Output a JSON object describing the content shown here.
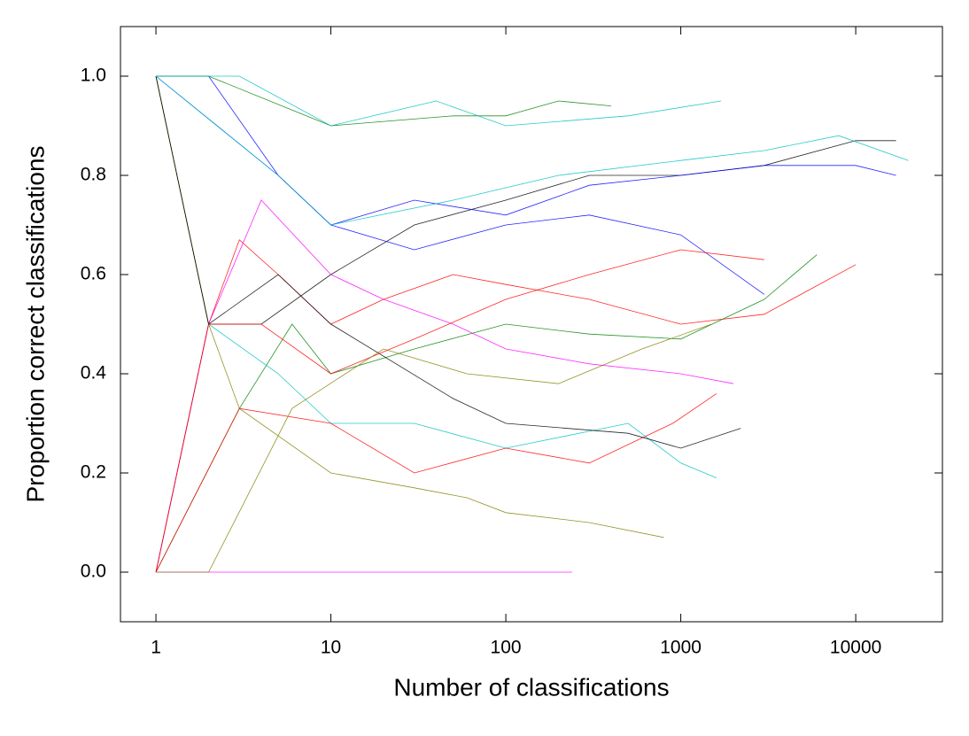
{
  "chart_data": {
    "type": "line",
    "x_label": "Number of classifications",
    "y_label": "Proportion correct classifications",
    "log_x": true,
    "xlim": [
      0.627,
      31300
    ],
    "xticks": [
      1,
      10,
      100,
      1000,
      10000
    ],
    "ylim": [
      -0.1,
      1.1
    ],
    "yticks": [
      {
        "value": 0,
        "label": "0.0"
      },
      {
        "value": 0.2,
        "label": "0.2"
      },
      {
        "value": 0.4,
        "label": "0.4"
      },
      {
        "value": 0.6,
        "label": "0.6"
      },
      {
        "value": 0.8,
        "label": "0.8"
      },
      {
        "value": 1,
        "label": "1.0"
      }
    ],
    "series": [
      {
        "color": "#ff0000",
        "x": [
          1,
          2,
          3,
          5,
          10,
          20,
          50,
          100,
          300,
          1000,
          3000,
          10000
        ],
        "values": [
          1,
          0.5,
          0.67,
          0.6,
          0.5,
          0.55,
          0.6,
          0.58,
          0.55,
          0.5,
          0.52,
          0.62
        ]
      },
      {
        "color": "#000000",
        "x": [
          1,
          2,
          4,
          10,
          30,
          100,
          300,
          1000,
          3000,
          10000,
          17000
        ],
        "values": [
          0,
          0.5,
          0.5,
          0.6,
          0.7,
          0.75,
          0.8,
          0.8,
          0.82,
          0.87,
          0.87
        ]
      },
      {
        "color": "#0000ff",
        "x": [
          1,
          2,
          5,
          10,
          30,
          100,
          300,
          1000,
          3000
        ],
        "values": [
          1,
          1,
          0.8,
          0.7,
          0.65,
          0.7,
          0.72,
          0.68,
          0.56
        ]
      },
      {
        "color": "#008000",
        "x": [
          1,
          3,
          6,
          10,
          30,
          100,
          300,
          1000,
          3000,
          6000
        ],
        "values": [
          0,
          0.33,
          0.5,
          0.4,
          0.45,
          0.5,
          0.48,
          0.47,
          0.55,
          0.64
        ]
      },
      {
        "color": "#00c0c0",
        "x": [
          1,
          2,
          5,
          10,
          30,
          100,
          500,
          1000,
          1600
        ],
        "values": [
          1,
          0.5,
          0.4,
          0.3,
          0.3,
          0.25,
          0.3,
          0.22,
          0.19
        ]
      },
      {
        "color": "#ff00ff",
        "x": [
          1,
          2,
          4,
          10,
          20,
          50,
          100,
          300,
          1000,
          2000
        ],
        "values": [
          0,
          0.5,
          0.75,
          0.6,
          0.55,
          0.5,
          0.45,
          0.42,
          0.4,
          0.38
        ]
      },
      {
        "color": "#808000",
        "x": [
          1,
          2,
          3,
          10,
          30,
          60,
          100,
          300,
          800
        ],
        "values": [
          1,
          0.5,
          0.33,
          0.2,
          0.17,
          0.15,
          0.12,
          0.1,
          0.07
        ]
      },
      {
        "color": "#ff0000",
        "x": [
          1,
          3,
          10,
          30,
          100,
          300,
          900,
          1600
        ],
        "values": [
          0,
          0.33,
          0.3,
          0.2,
          0.25,
          0.22,
          0.3,
          0.36
        ]
      },
      {
        "color": "#000000",
        "x": [
          1,
          2,
          5,
          10,
          50,
          100,
          500,
          1000,
          2200
        ],
        "values": [
          1,
          0.5,
          0.6,
          0.5,
          0.35,
          0.3,
          0.28,
          0.25,
          0.29
        ]
      },
      {
        "color": "#0000ff",
        "x": [
          1,
          5,
          10,
          30,
          100,
          300,
          1000,
          3000,
          10000,
          17000
        ],
        "values": [
          1,
          0.8,
          0.7,
          0.75,
          0.72,
          0.78,
          0.8,
          0.82,
          0.82,
          0.8
        ]
      },
      {
        "color": "#008000",
        "x": [
          1,
          2,
          10,
          50,
          100,
          200,
          400
        ],
        "values": [
          1,
          1,
          0.9,
          0.92,
          0.92,
          0.95,
          0.94
        ]
      },
      {
        "color": "#00c0c0",
        "x": [
          1,
          3,
          10,
          40,
          100,
          500,
          1700
        ],
        "values": [
          1,
          1,
          0.9,
          0.95,
          0.9,
          0.92,
          0.95
        ]
      },
      {
        "color": "#ff00ff",
        "x": [
          1,
          2,
          5,
          10,
          50,
          240
        ],
        "values": [
          0,
          0,
          0,
          0,
          0,
          0
        ]
      },
      {
        "color": "#00c0c0",
        "x": [
          1,
          5,
          10,
          50,
          200,
          1000,
          3000,
          8000,
          20000
        ],
        "values": [
          1,
          0.8,
          0.7,
          0.75,
          0.8,
          0.83,
          0.85,
          0.88,
          0.83
        ]
      },
      {
        "color": "#ff0000",
        "x": [
          1,
          2,
          4,
          10,
          30,
          100,
          300,
          1000,
          3000
        ],
        "values": [
          0,
          0.5,
          0.5,
          0.4,
          0.47,
          0.55,
          0.6,
          0.65,
          0.63
        ]
      },
      {
        "color": "#808000",
        "x": [
          1,
          2,
          6,
          20,
          60,
          200,
          600,
          1500
        ],
        "values": [
          0,
          0,
          0.33,
          0.45,
          0.4,
          0.38,
          0.45,
          0.5
        ]
      }
    ]
  }
}
